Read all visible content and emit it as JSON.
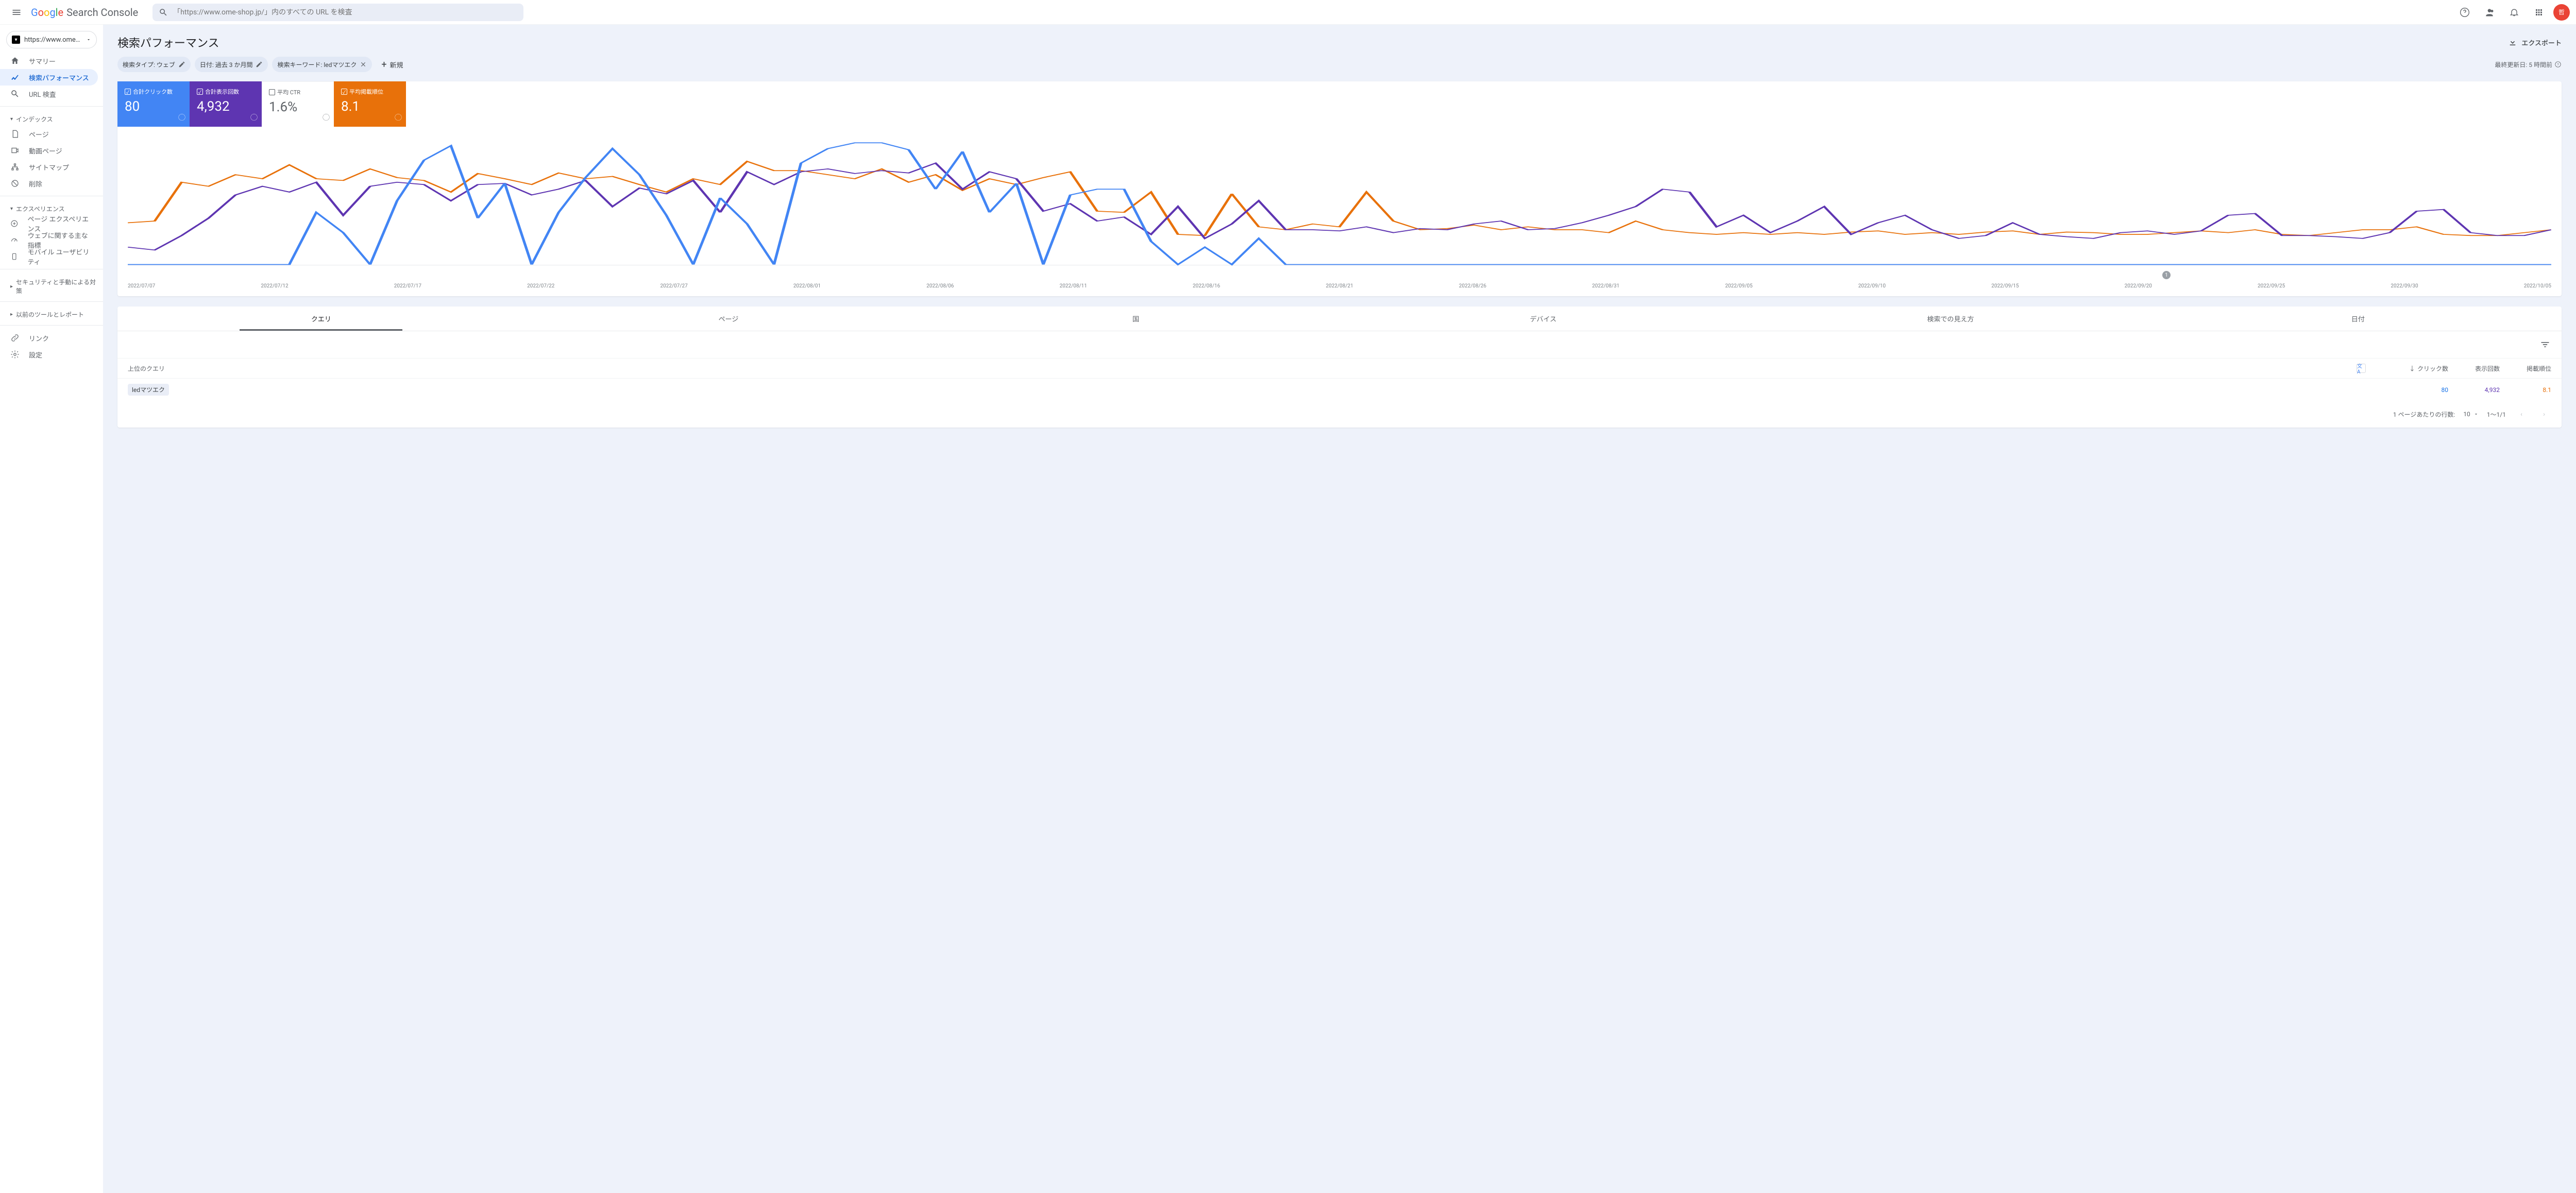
{
  "header": {
    "logo_google": "Google",
    "logo_sc": "Search Console",
    "search_placeholder": "「https://www.ome-shop.jp/」内のすべての URL を検査"
  },
  "sidebar": {
    "site": "https://www.ome-s...",
    "items": {
      "summary": "サマリー",
      "performance": "検索パフォーマンス",
      "url_inspect": "URL 検査"
    },
    "section_index": "インデックス",
    "index_items": {
      "pages": "ページ",
      "video": "動画ページ",
      "sitemap": "サイトマップ",
      "remove": "削除"
    },
    "section_experience": "エクスペリエンス",
    "exp_items": {
      "page_exp": "ページ エクスペリエンス",
      "core_web": "ウェブに関する主な指標",
      "mobile": "モバイル ユーザビリティ"
    },
    "section_security": "セキュリティと手動による対策",
    "section_legacy": "以前のツールとレポート",
    "link": "リンク",
    "settings": "設定"
  },
  "page": {
    "title": "検索パフォーマンス",
    "export": "エクスポート",
    "chips": {
      "type": "検索タイプ: ウェブ",
      "date": "日付: 過去 3 か月間",
      "query": "検索キーワード: ledマツエク"
    },
    "add_new": "新規",
    "last_update": "最終更新日: 5 時間前"
  },
  "metrics": {
    "clicks": {
      "label": "合計クリック数",
      "value": "80",
      "color": "#4285f4"
    },
    "impressions": {
      "label": "合計表示回数",
      "value": "4,932",
      "color": "#5e35b1"
    },
    "ctr": {
      "label": "平均 CTR",
      "value": "1.6%"
    },
    "position": {
      "label": "平均掲載順位",
      "value": "8.1",
      "color": "#e8710a"
    }
  },
  "chart": {
    "x_labels": [
      "2022/07/07",
      "2022/07/12",
      "2022/07/17",
      "2022/07/22",
      "2022/07/27",
      "2022/08/01",
      "2022/08/06",
      "2022/08/11",
      "2022/08/16",
      "2022/08/21",
      "2022/08/26",
      "2022/08/31",
      "2022/09/05",
      "2022/09/10",
      "2022/09/15",
      "2022/09/20",
      "2022/09/25",
      "2022/09/30",
      "2022/10/05"
    ],
    "colors": {
      "clicks": "#4285f4",
      "impressions": "#5e35b1",
      "position": "#e8710a",
      "grid": "#e8eaed"
    },
    "series": {
      "clicks_y": [
        220,
        220,
        220,
        220,
        220,
        220,
        220,
        130,
        165,
        220,
        110,
        40,
        15,
        140,
        80,
        220,
        130,
        70,
        20,
        65,
        135,
        220,
        105,
        150,
        220,
        45,
        20,
        10,
        10,
        22,
        90,
        25,
        130,
        80,
        220,
        100,
        90,
        90,
        180,
        220,
        190,
        220,
        175,
        220,
        220,
        220,
        220,
        220,
        220,
        220,
        220,
        220,
        220,
        220,
        220,
        220,
        220,
        220,
        220,
        220,
        220,
        220,
        220,
        220,
        220,
        220,
        220,
        220,
        220,
        220,
        220,
        220,
        220,
        220,
        220,
        220,
        220,
        220,
        220,
        220,
        220,
        220,
        220,
        220,
        220,
        220,
        220,
        220,
        220,
        220,
        220
      ],
      "impressions_y": [
        190,
        195,
        170,
        140,
        100,
        85,
        95,
        78,
        135,
        85,
        78,
        82,
        110,
        82,
        80,
        100,
        90,
        75,
        120,
        88,
        98,
        75,
        130,
        60,
        82,
        60,
        55,
        63,
        58,
        62,
        45,
        90,
        60,
        72,
        128,
        115,
        145,
        138,
        168,
        120,
        175,
        150,
        110,
        160,
        160,
        162,
        155,
        165,
        158,
        160,
        150,
        145,
        160,
        158,
        148,
        135,
        120,
        90,
        95,
        155,
        135,
        165,
        145,
        120,
        168,
        148,
        135,
        160,
        175,
        170,
        148,
        168,
        172,
        175,
        165,
        162,
        168,
        162,
        135,
        132,
        170,
        170,
        172,
        175,
        165,
        128,
        125,
        165,
        170,
        170,
        160
      ],
      "position_y": [
        148,
        145,
        78,
        85,
        65,
        72,
        48,
        72,
        75,
        55,
        70,
        75,
        95,
        63,
        72,
        82,
        62,
        72,
        68,
        82,
        95,
        72,
        82,
        42,
        58,
        58,
        65,
        72,
        55,
        78,
        65,
        92,
        72,
        82,
        70,
        60,
        128,
        130,
        95,
        168,
        170,
        98,
        155,
        160,
        150,
        155,
        95,
        145,
        160,
        158,
        152,
        160,
        155,
        160,
        160,
        165,
        145,
        160,
        165,
        168,
        165,
        168,
        165,
        168,
        164,
        162,
        168,
        165,
        168,
        164,
        162,
        168,
        164,
        165,
        168,
        168,
        165,
        162,
        165,
        160,
        168,
        170,
        165,
        160,
        160,
        155,
        168,
        170,
        170,
        165,
        160
      ]
    },
    "marker_label": "1"
  },
  "tabs": [
    "クエリ",
    "ページ",
    "国",
    "デバイス",
    "検索での見え方",
    "日付"
  ],
  "table": {
    "col_query": "上位のクエリ",
    "col_clicks": "クリック数",
    "col_imp": "表示回数",
    "col_pos": "掲載順位",
    "rows": [
      {
        "query": "ledマツエク",
        "clicks": "80",
        "impressions": "4,932",
        "position": "8.1"
      }
    ],
    "rows_per_page_label": "1 ページあたりの行数:",
    "rows_per_page": "10",
    "range": "1～1/1"
  }
}
